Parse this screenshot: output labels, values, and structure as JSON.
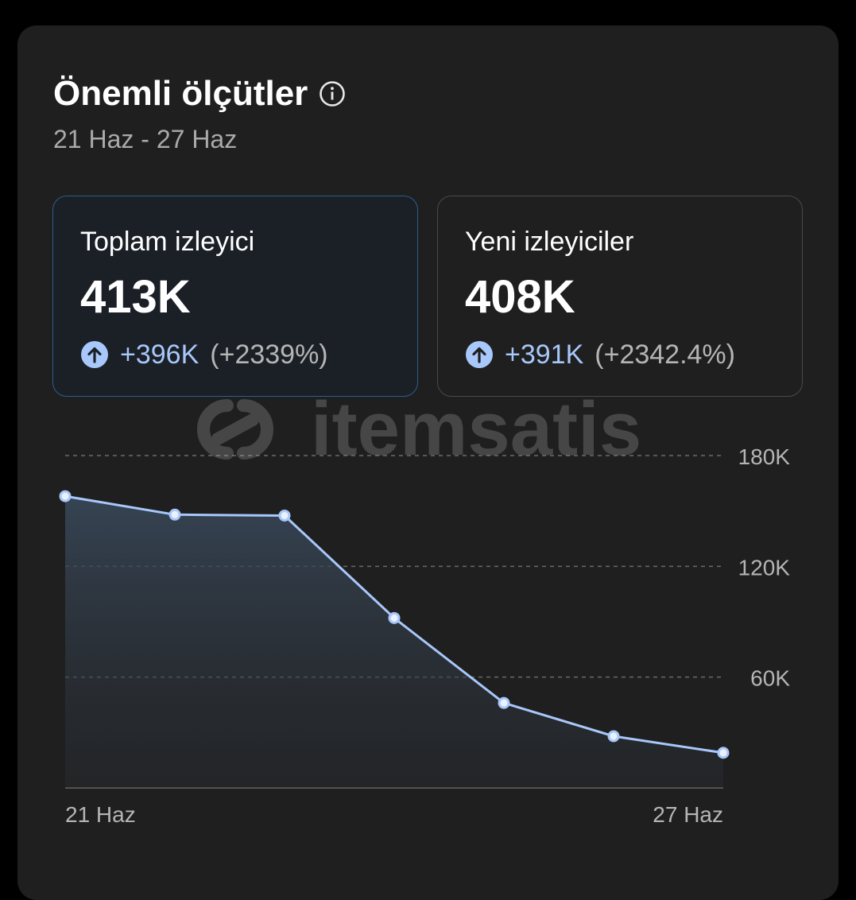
{
  "header": {
    "title": "Önemli ölçütler",
    "date_range": "21 Haz - 27 Haz"
  },
  "cards": [
    {
      "label": "Toplam izleyici",
      "value": "413K",
      "change": "+396K",
      "change_pct": "(+2339%)",
      "selected": true
    },
    {
      "label": "Yeni izleyiciler",
      "value": "408K",
      "change": "+391K",
      "change_pct": "(+2342.4%)",
      "selected": false
    }
  ],
  "watermark": {
    "text": "itemsatis"
  },
  "colors": {
    "accent_line": "#a8c7fa",
    "card_selected_border": "#2c5d8f",
    "up_icon": "#a8c7fa"
  },
  "chart_data": {
    "type": "area",
    "x": [
      "21 Haz",
      "22 Haz",
      "23 Haz",
      "24 Haz",
      "25 Haz",
      "26 Haz",
      "27 Haz"
    ],
    "values": [
      158000,
      148000,
      147500,
      92000,
      46000,
      28000,
      19000
    ],
    "y_ticks": [
      {
        "value": 60000,
        "label": "60K"
      },
      {
        "value": 120000,
        "label": "120K"
      },
      {
        "value": 180000,
        "label": "180K"
      }
    ],
    "x_tick_labels": [
      {
        "index": 0,
        "label": "21 Haz"
      },
      {
        "index": 6,
        "label": "27 Haz"
      }
    ],
    "ylim": [
      0,
      180000
    ],
    "grid": "horizontal-dashed",
    "axis_side": "right"
  }
}
